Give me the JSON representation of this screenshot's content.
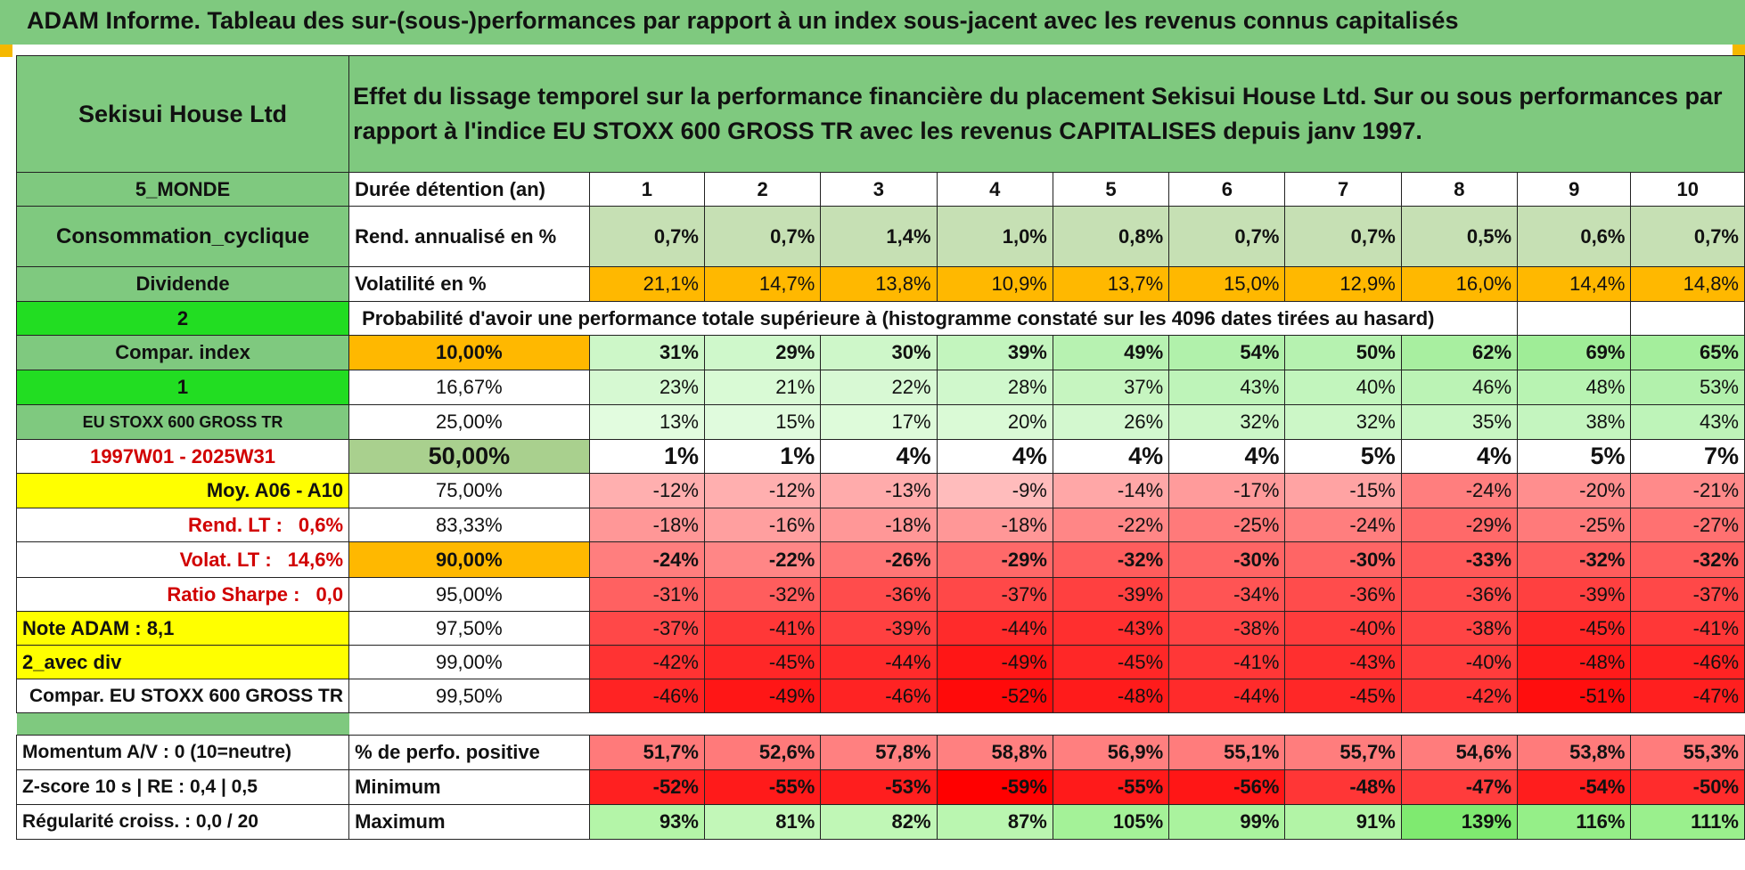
{
  "title": "ADAM Informe. Tableau des sur-(sous-)performances par rapport à un index sous-jacent avec les revenus connus capitalisés",
  "colors": {
    "banner": "#7fc97f",
    "label_green": "#7fc97f",
    "flag_green": "#22dd22",
    "yellow": "#ffff00",
    "orange": "#ffb800",
    "red_text": "#d10000"
  },
  "left": {
    "company": "Sekisui House Ltd",
    "region": "5_MONDE",
    "sector": "Consommation_cyclique",
    "dividend": "Dividende",
    "flag1": "2",
    "compar_index": "Compar. index",
    "flag2": "1",
    "index_name": "EU STOXX 600 GROSS TR",
    "period": "1997W01 - 2025W31",
    "moy": "Moy. A06 - A10",
    "rend_lt_label": "Rend. LT :",
    "rend_lt_value": "0,6%",
    "volat_lt_label": "Volat. LT :",
    "volat_lt_value": "14,6%",
    "sharpe_label": "Ratio Sharpe :",
    "sharpe_value": "0,0",
    "note": "Note ADAM : 8,1",
    "avec_div": "2_avec div",
    "compar_full": "Compar. EU STOXX 600 GROSS TR",
    "momentum": "Momentum A/V : 0 (10=neutre)",
    "zscore": "Z-score 10 s | RE : 0,4 | 0,5",
    "regularite": "Régularité croiss. : 0,0 / 20"
  },
  "description": "Effet du lissage temporel sur la performance financière du placement Sekisui House Ltd. Sur ou sous performances par rapport à l'indice EU STOXX 600 GROSS TR avec les revenus CAPITALISES depuis janv 1997.",
  "labels": {
    "duree": "Durée détention (an)",
    "rend": "Rend. annualisé en %",
    "vol": "Volatilité en %",
    "proba": "Probabilité d'avoir une performance totale supérieure à (histogramme constaté sur les 4096 dates tirées au hasard)",
    "pos": "% de perfo. positive",
    "min": "Minimum",
    "max": "Maximum"
  },
  "years": [
    "1",
    "2",
    "3",
    "4",
    "5",
    "6",
    "7",
    "8",
    "9",
    "10"
  ],
  "rend": [
    "0,7%",
    "0,7%",
    "1,4%",
    "1,0%",
    "0,8%",
    "0,7%",
    "0,7%",
    "0,5%",
    "0,6%",
    "0,7%"
  ],
  "vol": [
    "21,1%",
    "14,7%",
    "13,8%",
    "10,9%",
    "13,7%",
    "15,0%",
    "12,9%",
    "16,0%",
    "14,4%",
    "14,8%"
  ],
  "pct_rows": [
    {
      "threshold": "10,00%",
      "values": [
        "31%",
        "29%",
        "30%",
        "39%",
        "49%",
        "54%",
        "50%",
        "62%",
        "69%",
        "65%"
      ]
    },
    {
      "threshold": "16,67%",
      "values": [
        "23%",
        "21%",
        "22%",
        "28%",
        "37%",
        "43%",
        "40%",
        "46%",
        "48%",
        "53%"
      ]
    },
    {
      "threshold": "25,00%",
      "values": [
        "13%",
        "15%",
        "17%",
        "20%",
        "26%",
        "32%",
        "32%",
        "35%",
        "38%",
        "43%"
      ]
    },
    {
      "threshold": "50,00%",
      "values": [
        "1%",
        "1%",
        "4%",
        "4%",
        "4%",
        "4%",
        "5%",
        "4%",
        "5%",
        "7%"
      ]
    },
    {
      "threshold": "75,00%",
      "values": [
        "-12%",
        "-12%",
        "-13%",
        "-9%",
        "-14%",
        "-17%",
        "-15%",
        "-24%",
        "-20%",
        "-21%"
      ]
    },
    {
      "threshold": "83,33%",
      "values": [
        "-18%",
        "-16%",
        "-18%",
        "-18%",
        "-22%",
        "-25%",
        "-24%",
        "-29%",
        "-25%",
        "-27%"
      ]
    },
    {
      "threshold": "90,00%",
      "values": [
        "-24%",
        "-22%",
        "-26%",
        "-29%",
        "-32%",
        "-30%",
        "-30%",
        "-33%",
        "-32%",
        "-32%"
      ]
    },
    {
      "threshold": "95,00%",
      "values": [
        "-31%",
        "-32%",
        "-36%",
        "-37%",
        "-39%",
        "-34%",
        "-36%",
        "-36%",
        "-39%",
        "-37%"
      ]
    },
    {
      "threshold": "97,50%",
      "values": [
        "-37%",
        "-41%",
        "-39%",
        "-44%",
        "-43%",
        "-38%",
        "-40%",
        "-38%",
        "-45%",
        "-41%"
      ]
    },
    {
      "threshold": "99,00%",
      "values": [
        "-42%",
        "-45%",
        "-44%",
        "-49%",
        "-45%",
        "-41%",
        "-43%",
        "-40%",
        "-48%",
        "-46%"
      ]
    },
    {
      "threshold": "99,50%",
      "values": [
        "-46%",
        "-49%",
        "-46%",
        "-52%",
        "-48%",
        "-44%",
        "-45%",
        "-42%",
        "-51%",
        "-47%"
      ]
    }
  ],
  "pos": [
    "51,7%",
    "52,6%",
    "57,8%",
    "58,8%",
    "56,9%",
    "55,1%",
    "55,7%",
    "54,6%",
    "53,8%",
    "55,3%"
  ],
  "min": [
    "-52%",
    "-55%",
    "-53%",
    "-59%",
    "-55%",
    "-56%",
    "-48%",
    "-47%",
    "-54%",
    "-50%"
  ],
  "max": [
    "93%",
    "81%",
    "82%",
    "87%",
    "105%",
    "99%",
    "91%",
    "139%",
    "116%",
    "111%"
  ]
}
